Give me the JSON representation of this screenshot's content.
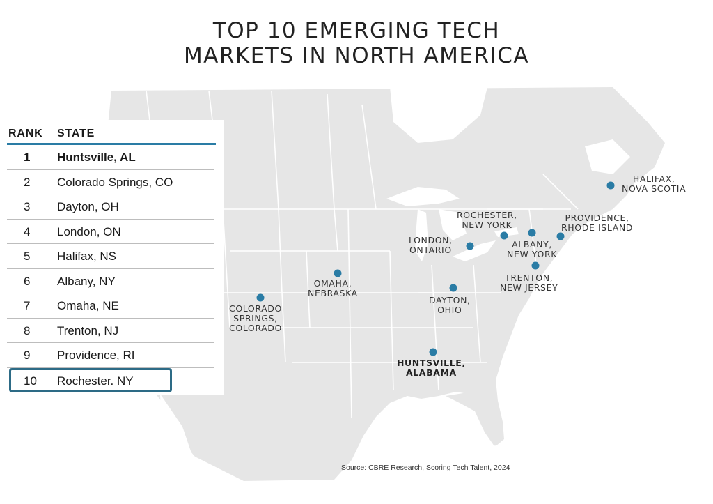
{
  "title": {
    "line1": "TOP 10 EMERGING TECH",
    "line2": "MARKETS IN NORTH AMERICA"
  },
  "table": {
    "rank_header": "RANK",
    "state_header": "STATE",
    "rows": [
      {
        "rank": "1",
        "state": "Huntsville, AL"
      },
      {
        "rank": "2",
        "state": "Colorado Springs, CO"
      },
      {
        "rank": "3",
        "state": "Dayton, OH"
      },
      {
        "rank": "4",
        "state": "London, ON"
      },
      {
        "rank": "5",
        "state": "Halifax, NS"
      },
      {
        "rank": "6",
        "state": "Albany, NY"
      },
      {
        "rank": "7",
        "state": "Omaha, NE"
      },
      {
        "rank": "8",
        "state": "Trenton, NJ"
      },
      {
        "rank": "9",
        "state": "Providence, RI"
      },
      {
        "rank": "10",
        "state": "Rochester. NY"
      }
    ]
  },
  "map_labels": {
    "halifax": [
      "HALIFAX,",
      "NOVA SCOTIA"
    ],
    "providence": [
      "PROVIDENCE,",
      "RHODE ISLAND"
    ],
    "rochester": [
      "ROCHESTER,",
      "NEW YORK"
    ],
    "albany": [
      "ALBANY,",
      "NEW YORK"
    ],
    "london": [
      "LONDON,",
      "ONTARIO"
    ],
    "trenton": [
      "TRENTON,",
      "NEW JERSEY"
    ],
    "omaha": [
      "OMAHA,",
      "NEBRASKA"
    ],
    "dayton": [
      "DAYTON,",
      "OHIO"
    ],
    "colorado": [
      "COLORADO",
      "SPRINGS,",
      "COLORADO"
    ],
    "huntsville": [
      "HUNTSVILLE,",
      "ALABAMA"
    ]
  },
  "source": "Source: CBRE Research, Scoring Tech Talent, 2024",
  "colors": {
    "marker": "#2a7ca5",
    "land": "#e6e6e6",
    "water": "#ffffff",
    "border": "#ffffff",
    "table_rule": "#2a7ca5",
    "highlight_box": "#2d6b86"
  }
}
